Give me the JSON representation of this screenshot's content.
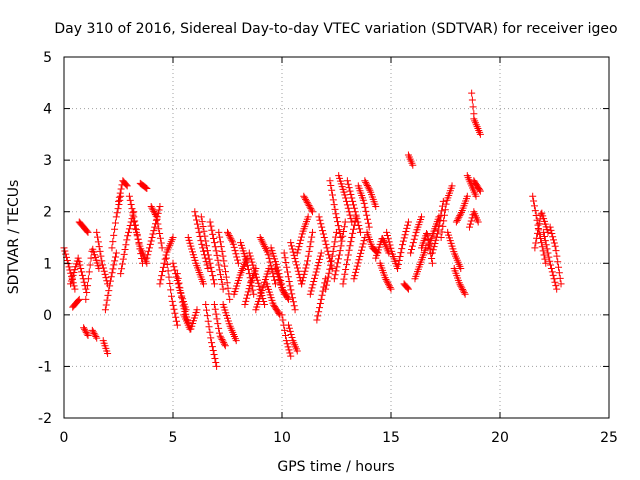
{
  "chart_data": {
    "type": "scatter",
    "title": "Day 310 of 2016, Sidereal Day-to-day VTEC variation (SDTVAR) for receiver igeo",
    "xlabel": "GPS time / hours",
    "ylabel": "SDTVAR / TECUs",
    "xlim": [
      0,
      25
    ],
    "ylim": [
      -2,
      5
    ],
    "xticks": [
      0,
      5,
      10,
      15,
      20,
      25
    ],
    "yticks": [
      -2,
      -1,
      0,
      1,
      2,
      3,
      4,
      5
    ],
    "xtick_labels": [
      "0",
      "5",
      "10",
      "15",
      "20",
      "25"
    ],
    "ytick_labels": [
      "-2",
      "-1",
      "0",
      "1",
      "2",
      "3",
      "4",
      "5"
    ],
    "grid": true,
    "marker": "+",
    "color": "#ff0000",
    "track_step_hours": 0.04,
    "series": [
      {
        "name": "SDTVAR",
        "tracks": [
          {
            "t0": 0.0,
            "t1": 0.5,
            "v": [
              1.3,
              0.5
            ]
          },
          {
            "t0": 0.3,
            "t1": 1.0,
            "v": [
              0.6,
              1.1,
              0.5
            ]
          },
          {
            "t0": 0.4,
            "t1": 0.7,
            "v": [
              0.15,
              0.3
            ]
          },
          {
            "t0": 0.7,
            "t1": 1.1,
            "v": [
              1.8,
              1.6
            ]
          },
          {
            "t0": 0.9,
            "t1": 1.1,
            "v": [
              -0.25,
              -0.4
            ]
          },
          {
            "t0": 1.0,
            "t1": 1.6,
            "v": [
              0.3,
              1.3,
              0.9
            ]
          },
          {
            "t0": 1.3,
            "t1": 1.5,
            "v": [
              -0.3,
              -0.45
            ]
          },
          {
            "t0": 1.5,
            "t1": 2.0,
            "v": [
              1.6,
              1.0,
              0.6
            ]
          },
          {
            "t0": 1.8,
            "t1": 2.0,
            "v": [
              -0.5,
              -0.75
            ]
          },
          {
            "t0": 1.9,
            "t1": 2.4,
            "v": [
              0.1,
              0.7,
              1.2
            ]
          },
          {
            "t0": 2.2,
            "t1": 2.6,
            "v": [
              1.3,
              1.9,
              2.3
            ]
          },
          {
            "t0": 2.5,
            "t1": 2.9,
            "v": [
              2.2,
              2.6,
              2.5
            ]
          },
          {
            "t0": 2.6,
            "t1": 3.2,
            "v": [
              0.8,
              1.5,
              2.0
            ]
          },
          {
            "t0": 3.0,
            "t1": 3.6,
            "v": [
              2.3,
              1.7,
              1.0
            ]
          },
          {
            "t0": 3.2,
            "t1": 3.8,
            "v": [
              1.8,
              1.3,
              1.0
            ]
          },
          {
            "t0": 3.5,
            "t1": 3.8,
            "v": [
              2.55,
              2.45
            ]
          },
          {
            "t0": 3.8,
            "t1": 4.4,
            "v": [
              1.1,
              1.6,
              2.1
            ]
          },
          {
            "t0": 4.0,
            "t1": 4.5,
            "v": [
              2.1,
              1.9,
              1.3
            ]
          },
          {
            "t0": 4.4,
            "t1": 5.0,
            "v": [
              0.6,
              1.2,
              1.5
            ]
          },
          {
            "t0": 4.7,
            "t1": 5.2,
            "v": [
              1.1,
              0.3,
              -0.2
            ]
          },
          {
            "t0": 5.0,
            "t1": 5.6,
            "v": [
              1.0,
              0.5,
              0.1
            ]
          },
          {
            "t0": 5.2,
            "t1": 5.7,
            "v": [
              0.8,
              0.2,
              -0.15
            ]
          },
          {
            "t0": 5.5,
            "t1": 6.1,
            "v": [
              0.0,
              -0.3,
              0.1
            ]
          },
          {
            "t0": 5.7,
            "t1": 6.4,
            "v": [
              1.5,
              1.0,
              0.6
            ]
          },
          {
            "t0": 6.0,
            "t1": 6.6,
            "v": [
              2.0,
              1.4,
              0.9
            ]
          },
          {
            "t0": 6.3,
            "t1": 6.9,
            "v": [
              1.9,
              1.2,
              0.6
            ]
          },
          {
            "t0": 6.5,
            "t1": 7.0,
            "v": [
              0.2,
              -0.5,
              -1.0
            ]
          },
          {
            "t0": 6.7,
            "t1": 7.3,
            "v": [
              1.8,
              1.2,
              0.5
            ]
          },
          {
            "t0": 6.9,
            "t1": 7.4,
            "v": [
              0.2,
              -0.4,
              -0.6
            ]
          },
          {
            "t0": 7.1,
            "t1": 7.6,
            "v": [
              1.6,
              1.0,
              0.3
            ]
          },
          {
            "t0": 7.3,
            "t1": 7.9,
            "v": [
              0.2,
              -0.2,
              -0.5
            ]
          },
          {
            "t0": 7.5,
            "t1": 8.0,
            "v": [
              1.6,
              1.4,
              1.0
            ]
          },
          {
            "t0": 7.8,
            "t1": 8.4,
            "v": [
              0.4,
              0.8,
              1.1
            ]
          },
          {
            "t0": 8.1,
            "t1": 8.7,
            "v": [
              1.4,
              1.0,
              0.4
            ]
          },
          {
            "t0": 8.3,
            "t1": 8.8,
            "v": [
              0.2,
              0.6,
              0.9
            ]
          },
          {
            "t0": 8.5,
            "t1": 9.2,
            "v": [
              1.2,
              0.7,
              0.2
            ]
          },
          {
            "t0": 8.8,
            "t1": 9.4,
            "v": [
              0.1,
              0.5,
              0.9
            ]
          },
          {
            "t0": 9.0,
            "t1": 9.7,
            "v": [
              1.5,
              1.2,
              0.6
            ]
          },
          {
            "t0": 9.3,
            "t1": 9.9,
            "v": [
              0.6,
              0.2,
              0.0
            ]
          },
          {
            "t0": 9.5,
            "t1": 10.1,
            "v": [
              1.3,
              0.9,
              0.4
            ]
          },
          {
            "t0": 9.7,
            "t1": 10.3,
            "v": [
              0.9,
              0.5,
              0.3
            ]
          },
          {
            "t0": 10.0,
            "t1": 10.4,
            "v": [
              0.0,
              -0.5,
              -0.8
            ]
          },
          {
            "t0": 10.1,
            "t1": 10.6,
            "v": [
              1.2,
              0.6,
              0.1
            ]
          },
          {
            "t0": 10.3,
            "t1": 10.7,
            "v": [
              -0.2,
              -0.5,
              -0.7
            ]
          },
          {
            "t0": 10.4,
            "t1": 10.9,
            "v": [
              1.4,
              1.0,
              0.6
            ]
          },
          {
            "t0": 10.7,
            "t1": 11.2,
            "v": [
              1.2,
              1.6,
              1.9
            ]
          },
          {
            "t0": 10.9,
            "t1": 11.4,
            "v": [
              0.6,
              1.0,
              1.6
            ]
          },
          {
            "t0": 11.0,
            "t1": 11.4,
            "v": [
              2.3,
              2.0
            ]
          },
          {
            "t0": 11.3,
            "t1": 11.8,
            "v": [
              0.4,
              0.8,
              1.2
            ]
          },
          {
            "t0": 11.6,
            "t1": 12.0,
            "v": [
              -0.1,
              0.3,
              0.7
            ]
          },
          {
            "t0": 11.7,
            "t1": 12.3,
            "v": [
              1.9,
              1.4,
              0.9
            ]
          },
          {
            "t0": 12.0,
            "t1": 12.5,
            "v": [
              0.5,
              1.0,
              1.6
            ]
          },
          {
            "t0": 12.2,
            "t1": 12.7,
            "v": [
              2.6,
              2.0,
              1.5
            ]
          },
          {
            "t0": 12.4,
            "t1": 12.9,
            "v": [
              0.7,
              1.2,
              1.8
            ]
          },
          {
            "t0": 12.6,
            "t1": 13.2,
            "v": [
              2.7,
              2.3,
              1.8
            ]
          },
          {
            "t0": 12.8,
            "t1": 13.4,
            "v": [
              0.6,
              1.3,
              1.9
            ]
          },
          {
            "t0": 13.0,
            "t1": 13.6,
            "v": [
              2.6,
              2.1,
              1.6
            ]
          },
          {
            "t0": 13.3,
            "t1": 13.8,
            "v": [
              0.7,
              1.1,
              1.5
            ]
          },
          {
            "t0": 13.5,
            "t1": 14.0,
            "v": [
              2.5,
              2.2,
              1.7
            ]
          },
          {
            "t0": 13.8,
            "t1": 14.3,
            "v": [
              2.6,
              2.4,
              2.1
            ]
          },
          {
            "t0": 13.9,
            "t1": 14.4,
            "v": [
              1.6,
              1.3,
              1.2
            ]
          },
          {
            "t0": 14.3,
            "t1": 14.9,
            "v": [
              1.1,
              1.5,
              1.2
            ]
          },
          {
            "t0": 14.5,
            "t1": 15.0,
            "v": [
              1.0,
              0.7,
              0.5
            ]
          },
          {
            "t0": 14.8,
            "t1": 15.3,
            "v": [
              1.6,
              1.2,
              0.9
            ]
          },
          {
            "t0": 15.3,
            "t1": 15.8,
            "v": [
              0.9,
              1.4,
              1.8
            ]
          },
          {
            "t0": 15.6,
            "t1": 15.8,
            "v": [
              0.6,
              0.5
            ]
          },
          {
            "t0": 15.8,
            "t1": 16.0,
            "v": [
              3.1,
              2.9
            ]
          },
          {
            "t0": 15.9,
            "t1": 16.4,
            "v": [
              1.2,
              1.6,
              1.9
            ]
          },
          {
            "t0": 16.1,
            "t1": 16.6,
            "v": [
              0.7,
              1.0,
              1.3
            ]
          },
          {
            "t0": 16.4,
            "t1": 16.9,
            "v": [
              1.3,
              1.6,
              1.0
            ]
          },
          {
            "t0": 16.7,
            "t1": 17.2,
            "v": [
              1.3,
              1.6,
              1.9
            ]
          },
          {
            "t0": 16.9,
            "t1": 17.4,
            "v": [
              1.2,
              1.6,
              2.2
            ]
          },
          {
            "t0": 17.3,
            "t1": 17.8,
            "v": [
              1.5,
              2.2,
              2.5
            ]
          },
          {
            "t0": 17.6,
            "t1": 18.2,
            "v": [
              1.6,
              1.2,
              0.9
            ]
          },
          {
            "t0": 17.9,
            "t1": 18.4,
            "v": [
              0.9,
              0.6,
              0.4
            ]
          },
          {
            "t0": 18.0,
            "t1": 18.5,
            "v": [
              1.8,
              2.0,
              2.3
            ]
          },
          {
            "t0": 18.5,
            "t1": 18.9,
            "v": [
              2.7,
              2.3
            ]
          },
          {
            "t0": 18.6,
            "t1": 19.0,
            "v": [
              1.7,
              2.0,
              1.8
            ]
          },
          {
            "t0": 18.7,
            "t1": 18.8,
            "v": [
              4.3,
              3.9
            ]
          },
          {
            "t0": 18.8,
            "t1": 19.1,
            "v": [
              3.8,
              3.5
            ]
          },
          {
            "t0": 18.8,
            "t1": 19.1,
            "v": [
              2.6,
              2.4
            ]
          },
          {
            "t0": 21.5,
            "t1": 22.1,
            "v": [
              2.3,
              1.6,
              1.0
            ]
          },
          {
            "t0": 21.6,
            "t1": 22.2,
            "v": [
              1.3,
              2.0,
              1.6
            ]
          },
          {
            "t0": 22.0,
            "t1": 22.6,
            "v": [
              1.6,
              1.0,
              0.5
            ]
          },
          {
            "t0": 22.3,
            "t1": 22.8,
            "v": [
              1.7,
              1.3,
              0.6
            ]
          }
        ]
      }
    ]
  }
}
